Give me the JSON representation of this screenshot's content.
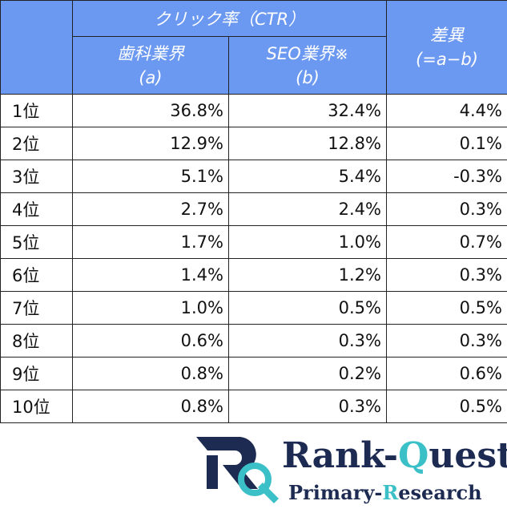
{
  "header": {
    "group": "クリック率（CTR）",
    "col_a": [
      "歯科業界",
      "(a)"
    ],
    "col_b": [
      "SEO業界※",
      "(b)"
    ],
    "diff": [
      "差異",
      "(=a−b)"
    ]
  },
  "table": {
    "rows": [
      [
        "1位",
        "36.8%",
        "32.4%",
        "4.4%"
      ],
      [
        "2位",
        "12.9%",
        "12.8%",
        "0.1%"
      ],
      [
        "3位",
        "5.1%",
        "5.4%",
        "-0.3%"
      ],
      [
        "4位",
        "2.7%",
        "2.4%",
        "0.3%"
      ],
      [
        "5位",
        "1.7%",
        "1.0%",
        "0.7%"
      ],
      [
        "6位",
        "1.4%",
        "1.2%",
        "0.3%"
      ],
      [
        "7位",
        "1.0%",
        "0.5%",
        "0.5%"
      ],
      [
        "8位",
        "0.6%",
        "0.3%",
        "0.3%"
      ],
      [
        "9位",
        "0.8%",
        "0.2%",
        "0.6%"
      ],
      [
        "10位",
        "0.8%",
        "0.3%",
        "0.5%"
      ]
    ]
  },
  "logo": {
    "name": [
      "Rank-",
      "Q",
      "uest"
    ],
    "tagline": [
      "Primary-",
      "R",
      "esearch"
    ]
  }
}
